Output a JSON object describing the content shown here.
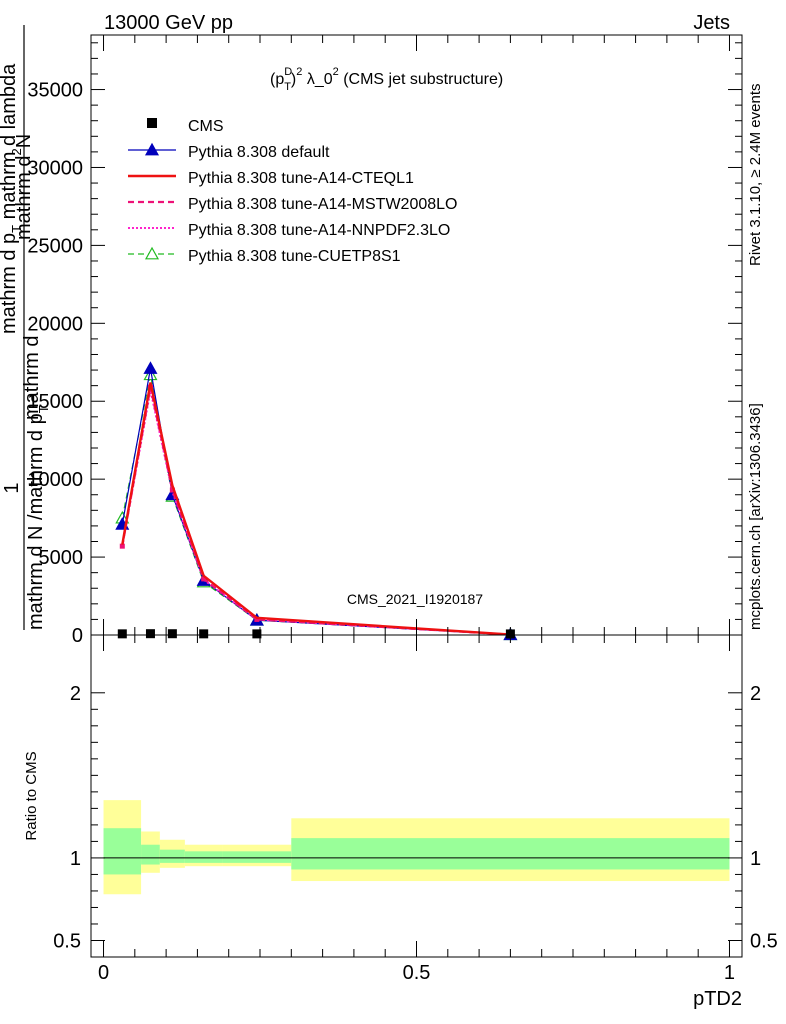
{
  "header": {
    "left": "13000 GeV pp",
    "right": "Jets"
  },
  "side_labels": {
    "rivet": "Rivet 3.1.10, ≥ 2.4M events",
    "mcplots": "mcplots.cern.ch [arXiv:1306.3436]"
  },
  "watermark": "CMS_2021_I1920187",
  "colors": {
    "cms": "#000000",
    "default": "#0000bb",
    "cteql1": "#ee1111",
    "mstw": "#ee1177",
    "nnpdf": "#ff22cc",
    "cuetp8s1": "#22bb22",
    "band_outer": "#ffff99",
    "band_inner": "#99ff99"
  },
  "chart_data": [
    {
      "type": "line",
      "title_parts": {
        "p": "(p",
        "sup_d": "D",
        "sub_t": "T",
        "sup_2": "2",
        "rest": " λ_0",
        "sup_last": "2",
        "tail": " (CMS jet substructure)"
      },
      "ylabel": {
        "one": "1",
        "den": "mathrm d N /mathrm d p",
        "den_sub": "T",
        "num_mid": "mathrm d",
        "num_rest": "mathrm d p",
        "num_sub": "T",
        "num_tail": " mathrm d lambda",
        "num_top": "mathrm d",
        "num_sup": "2",
        "num_n": "N"
      },
      "xlim": [
        -0.02,
        1.02
      ],
      "ylim": [
        0,
        38500
      ],
      "yticks": [
        0,
        5000,
        10000,
        15000,
        20000,
        25000,
        30000,
        35000
      ],
      "ytick_labels": [
        "0",
        "5000",
        "10000",
        "15000",
        "20000",
        "25000",
        "30000",
        "35000"
      ],
      "legend": [
        {
          "key": "cms",
          "label": "CMS"
        },
        {
          "key": "default",
          "label": "Pythia 8.308 default"
        },
        {
          "key": "cteql1",
          "label": "Pythia 8.308 tune-A14-CTEQL1"
        },
        {
          "key": "mstw",
          "label": "Pythia 8.308 tune-A14-MSTW2008LO"
        },
        {
          "key": "nnpdf",
          "label": "Pythia 8.308 tune-A14-NNPDF2.3LO"
        },
        {
          "key": "cuetp8s1",
          "label": "Pythia 8.308 tune-CUETP8S1"
        }
      ],
      "cms": {
        "x": [
          0.03,
          0.075,
          0.11,
          0.16,
          0.245,
          0.65
        ],
        "y": [
          10,
          20,
          18,
          10,
          8,
          5
        ]
      },
      "series": [
        {
          "key": "default",
          "x": [
            0.03,
            0.075,
            0.11,
            0.16,
            0.245,
            0.65
          ],
          "y": [
            7100,
            17100,
            9000,
            3500,
            950,
            20
          ]
        },
        {
          "key": "cteql1",
          "x": [
            0.03,
            0.075,
            0.11,
            0.16,
            0.245,
            0.65
          ],
          "y": [
            5800,
            16200,
            9600,
            3800,
            1100,
            30
          ]
        },
        {
          "key": "mstw",
          "x": [
            0.03,
            0.075,
            0.11,
            0.16,
            0.245,
            0.65
          ],
          "y": [
            5700,
            15900,
            9300,
            3600,
            1000,
            25
          ]
        },
        {
          "key": "nnpdf",
          "x": [
            0.03,
            0.075,
            0.11,
            0.16,
            0.245,
            0.65
          ],
          "y": [
            5700,
            15700,
            9200,
            3550,
            1000,
            25
          ]
        },
        {
          "key": "cuetp8s1",
          "x": [
            0.03,
            0.075,
            0.11,
            0.16,
            0.245,
            0.65
          ],
          "y": [
            7500,
            16700,
            8900,
            3400,
            950,
            20
          ]
        }
      ]
    },
    {
      "type": "area",
      "ylabel": "Ratio to CMS",
      "xlabel": "pTD2",
      "xlim": [
        -0.02,
        1.02
      ],
      "ylim": [
        0.4,
        2.35
      ],
      "yticks": [
        0.5,
        1,
        2
      ],
      "ytick_labels": [
        "0.5",
        "1",
        "2"
      ],
      "xticks": [
        0,
        0.5,
        1
      ],
      "xtick_labels": [
        "0",
        "0.5",
        "1"
      ],
      "bins": [
        {
          "lo": 0.0,
          "hi": 0.06,
          "outer": [
            0.78,
            1.35
          ],
          "inner": [
            0.9,
            1.18
          ]
        },
        {
          "lo": 0.06,
          "hi": 0.09,
          "outer": [
            0.91,
            1.16
          ],
          "inner": [
            0.96,
            1.08
          ]
        },
        {
          "lo": 0.09,
          "hi": 0.13,
          "outer": [
            0.94,
            1.11
          ],
          "inner": [
            0.97,
            1.05
          ]
        },
        {
          "lo": 0.13,
          "hi": 0.19,
          "outer": [
            0.95,
            1.08
          ],
          "inner": [
            0.97,
            1.04
          ]
        },
        {
          "lo": 0.19,
          "hi": 0.3,
          "outer": [
            0.95,
            1.08
          ],
          "inner": [
            0.97,
            1.04
          ]
        },
        {
          "lo": 0.3,
          "hi": 1.0,
          "outer": [
            0.86,
            1.24
          ],
          "inner": [
            0.93,
            1.12
          ]
        }
      ]
    }
  ]
}
